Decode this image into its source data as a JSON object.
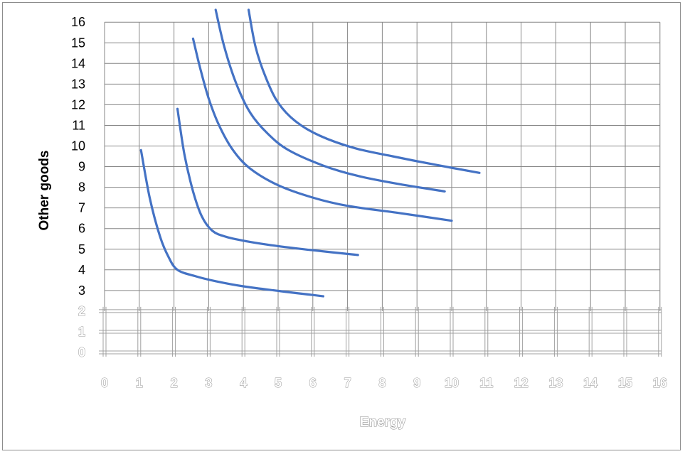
{
  "chart_data": {
    "type": "line",
    "title": "",
    "xlabel": "Energy",
    "ylabel": "Other goods",
    "xlim": [
      0,
      16
    ],
    "ylim": [
      0,
      16
    ],
    "x_ticks": [
      "0",
      "1",
      "2",
      "3",
      "4",
      "5",
      "6",
      "7",
      "8",
      "9",
      "10",
      "11",
      "12",
      "13",
      "14",
      "15",
      "16"
    ],
    "y_ticks": [
      "0",
      "1",
      "2",
      "3",
      "4",
      "5",
      "6",
      "7",
      "8",
      "9",
      "10",
      "11",
      "12",
      "13",
      "14",
      "15",
      "16"
    ],
    "grid": true,
    "legend": "none",
    "line_color": "#4472c4",
    "series": [
      {
        "points": [
          [
            1.05,
            9.8
          ],
          [
            1.3,
            7.5
          ],
          [
            1.6,
            5.6
          ],
          [
            1.85,
            4.6
          ],
          [
            2.1,
            4.0
          ],
          [
            2.6,
            3.7
          ],
          [
            3.2,
            3.45
          ],
          [
            4.0,
            3.2
          ],
          [
            5.0,
            2.98
          ],
          [
            6.0,
            2.78
          ],
          [
            6.3,
            2.72
          ]
        ]
      },
      {
        "points": [
          [
            2.1,
            11.8
          ],
          [
            2.3,
            9.6
          ],
          [
            2.55,
            7.8
          ],
          [
            2.8,
            6.6
          ],
          [
            3.1,
            5.9
          ],
          [
            3.5,
            5.6
          ],
          [
            4.2,
            5.35
          ],
          [
            5.0,
            5.15
          ],
          [
            6.0,
            4.95
          ],
          [
            7.3,
            4.72
          ]
        ]
      },
      {
        "points": [
          [
            2.55,
            15.2
          ],
          [
            2.75,
            13.8
          ],
          [
            3.0,
            12.3
          ],
          [
            3.3,
            11.0
          ],
          [
            3.7,
            9.8
          ],
          [
            4.2,
            8.9
          ],
          [
            5.0,
            8.1
          ],
          [
            6.0,
            7.5
          ],
          [
            7.0,
            7.1
          ],
          [
            8.5,
            6.75
          ],
          [
            10.0,
            6.38
          ]
        ]
      },
      {
        "points": [
          [
            3.2,
            16.6
          ],
          [
            3.45,
            14.8
          ],
          [
            3.8,
            13.0
          ],
          [
            4.2,
            11.6
          ],
          [
            4.7,
            10.6
          ],
          [
            5.3,
            9.8
          ],
          [
            6.3,
            9.05
          ],
          [
            7.3,
            8.55
          ],
          [
            8.5,
            8.15
          ],
          [
            9.8,
            7.8
          ]
        ]
      },
      {
        "points": [
          [
            4.15,
            16.6
          ],
          [
            4.35,
            14.8
          ],
          [
            4.65,
            13.3
          ],
          [
            5.0,
            12.1
          ],
          [
            5.5,
            11.2
          ],
          [
            6.2,
            10.5
          ],
          [
            7.2,
            9.9
          ],
          [
            8.3,
            9.5
          ],
          [
            9.5,
            9.1
          ],
          [
            10.8,
            8.7
          ]
        ]
      }
    ]
  }
}
